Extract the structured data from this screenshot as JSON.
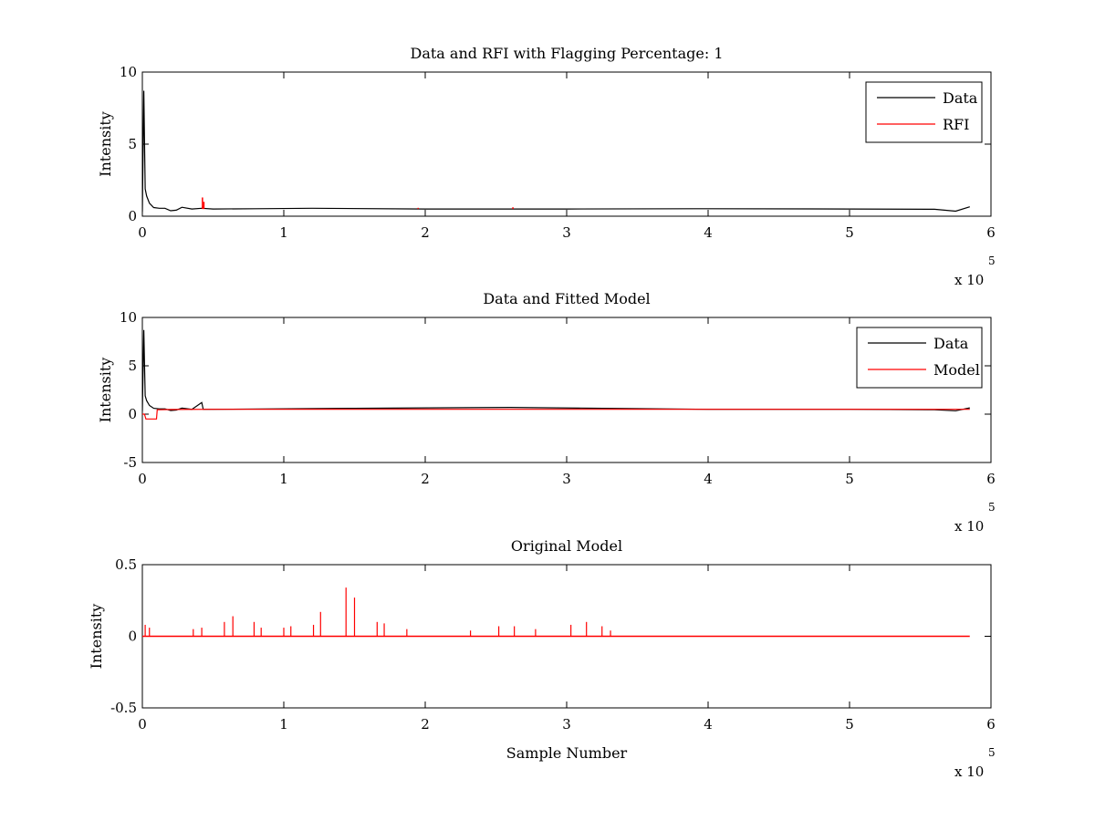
{
  "chart_data": [
    {
      "type": "line",
      "title": "Data and RFI with Flagging Percentage: 1",
      "xlabel": "",
      "ylabel": "Intensity",
      "xlim": [
        0,
        600000
      ],
      "ylim": [
        0,
        10
      ],
      "xticks": [
        0,
        1,
        2,
        3,
        4,
        5,
        6
      ],
      "yticks": [
        0,
        5,
        10
      ],
      "x_multiplier": "x 10",
      "x_exponent": "5",
      "legend_position": "top-right",
      "series": [
        {
          "name": "Data",
          "color": "#000000",
          "x": [
            0,
            1000,
            2000,
            3000,
            5000,
            8000,
            12000,
            16000,
            20000,
            24000,
            28000,
            35000,
            42000,
            50000,
            80000,
            120000,
            200000,
            300000,
            400000,
            500000,
            560000,
            575000,
            585000
          ],
          "y": [
            0.3,
            8.7,
            1.9,
            1.4,
            0.9,
            0.6,
            0.55,
            0.55,
            0.38,
            0.42,
            0.62,
            0.5,
            0.55,
            0.5,
            0.52,
            0.55,
            0.5,
            0.5,
            0.52,
            0.5,
            0.48,
            0.35,
            0.65
          ]
        },
        {
          "name": "RFI",
          "color": "#ff0000",
          "x": [
            42500,
            43000,
            43500,
            195000,
            262000
          ],
          "y": [
            1.3,
            0.7,
            1.0,
            0.58,
            0.62
          ]
        }
      ]
    },
    {
      "type": "line",
      "title": "Data and Fitted Model",
      "xlabel": "",
      "ylabel": "Intensity",
      "xlim": [
        0,
        600000
      ],
      "ylim": [
        -5,
        10
      ],
      "xticks": [
        0,
        1,
        2,
        3,
        4,
        5,
        6
      ],
      "yticks": [
        -5,
        0,
        5,
        10
      ],
      "x_multiplier": "x 10",
      "x_exponent": "5",
      "legend_position": "top-right",
      "series": [
        {
          "name": "Data",
          "color": "#000000",
          "x": [
            0,
            1000,
            2000,
            3000,
            5000,
            8000,
            12000,
            16000,
            20000,
            24000,
            28000,
            35000,
            42000,
            43000,
            50000,
            150000,
            260000,
            400000,
            500000,
            560000,
            575000,
            585000
          ],
          "y": [
            0.3,
            8.7,
            1.9,
            1.4,
            0.9,
            0.6,
            0.55,
            0.55,
            0.38,
            0.42,
            0.62,
            0.5,
            1.2,
            0.5,
            0.5,
            0.6,
            0.7,
            0.5,
            0.5,
            0.45,
            0.35,
            0.65
          ]
        },
        {
          "name": "Model",
          "color": "#ff0000",
          "x": [
            0,
            1500,
            2500,
            10000,
            10500,
            20000,
            50000,
            200000,
            400000,
            585000
          ],
          "y": [
            0.0,
            0.0,
            -0.5,
            -0.5,
            0.45,
            0.48,
            0.5,
            0.5,
            0.5,
            0.5
          ]
        }
      ]
    },
    {
      "type": "line",
      "title": "Original Model",
      "xlabel": "Sample Number",
      "ylabel": "Intensity",
      "xlim": [
        0,
        600000
      ],
      "ylim": [
        -0.5,
        0.5
      ],
      "xticks": [
        0,
        1,
        2,
        3,
        4,
        5,
        6
      ],
      "yticks": [
        -0.5,
        0,
        0.5
      ],
      "x_multiplier": "x 10",
      "x_exponent": "5",
      "series": [
        {
          "color": "#ff0000",
          "x": [
            2000,
            5000,
            36000,
            42000,
            58000,
            64000,
            79000,
            84000,
            100000,
            105000,
            121000,
            126000,
            144000,
            150000,
            166000,
            171000,
            187000,
            232000,
            252000,
            263000,
            278000,
            303000,
            314000,
            325000,
            331000
          ],
          "y": [
            0.08,
            0.06,
            0.05,
            0.06,
            0.1,
            0.14,
            0.1,
            0.06,
            0.06,
            0.07,
            0.08,
            0.17,
            0.34,
            0.27,
            0.1,
            0.09,
            0.05,
            0.04,
            0.07,
            0.07,
            0.05,
            0.08,
            0.1,
            0.07,
            0.04
          ]
        }
      ]
    }
  ]
}
